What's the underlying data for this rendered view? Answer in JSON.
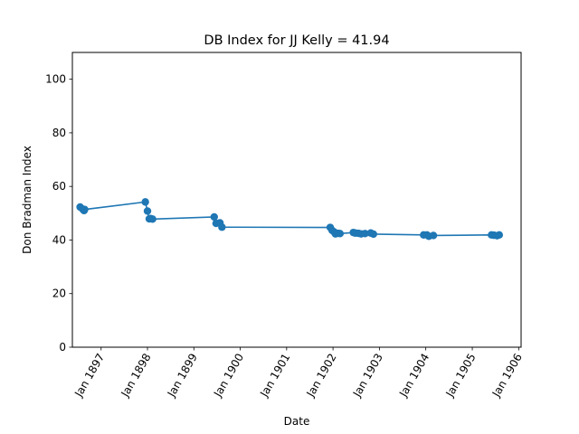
{
  "chart_data": {
    "type": "line",
    "title": "DB Index for JJ Kelly = 41.94",
    "xlabel": "Date",
    "ylabel": "Don Bradman Index",
    "ylim": [
      0,
      110
    ],
    "xlim": [
      "1896-05-20",
      "1906-01-20"
    ],
    "yticks": [
      0,
      20,
      40,
      60,
      80,
      100
    ],
    "xticks": [
      {
        "date": "1897-01-01",
        "label": "Jan 1897"
      },
      {
        "date": "1898-01-01",
        "label": "Jan 1898"
      },
      {
        "date": "1899-01-01",
        "label": "Jan 1899"
      },
      {
        "date": "1900-01-01",
        "label": "Jan 1900"
      },
      {
        "date": "1901-01-01",
        "label": "Jan 1901"
      },
      {
        "date": "1902-01-01",
        "label": "Jan 1902"
      },
      {
        "date": "1903-01-01",
        "label": "Jan 1903"
      },
      {
        "date": "1904-01-01",
        "label": "Jan 1904"
      },
      {
        "date": "1905-01-01",
        "label": "Jan 1905"
      },
      {
        "date": "1906-01-01",
        "label": "Jan 1906"
      }
    ],
    "line_color": "#1f77b4",
    "grid": false,
    "series": [
      {
        "x": [
          "1896-07-20",
          "1896-08-10",
          "1896-08-20",
          "1896-08-25",
          "1897-12-15",
          "1898-01-01",
          "1898-01-15",
          "1898-01-25",
          "1898-02-10",
          "1899-06-10",
          "1899-06-25",
          "1899-07-25",
          "1899-08-10",
          "1901-12-10",
          "1901-12-25",
          "1902-01-10",
          "1902-01-20",
          "1902-02-10",
          "1902-02-25",
          "1902-06-10",
          "1902-06-25",
          "1902-07-20",
          "1902-08-10",
          "1902-09-10",
          "1902-10-25",
          "1902-11-15",
          "1903-12-15",
          "1904-01-10",
          "1904-01-25",
          "1904-03-01",
          "1905-06-01",
          "1905-06-20",
          "1905-07-15",
          "1905-08-01"
        ],
        "y": [
          52.3,
          51.5,
          51.0,
          51.4,
          54.2,
          50.8,
          47.9,
          48.0,
          47.8,
          48.6,
          46.2,
          46.4,
          44.8,
          44.7,
          43.6,
          43.0,
          42.3,
          42.5,
          42.4,
          42.8,
          42.6,
          42.5,
          42.3,
          42.4,
          42.6,
          42.2,
          41.9,
          41.9,
          41.4,
          41.7,
          41.9,
          41.8,
          41.6,
          41.9
        ]
      }
    ]
  }
}
